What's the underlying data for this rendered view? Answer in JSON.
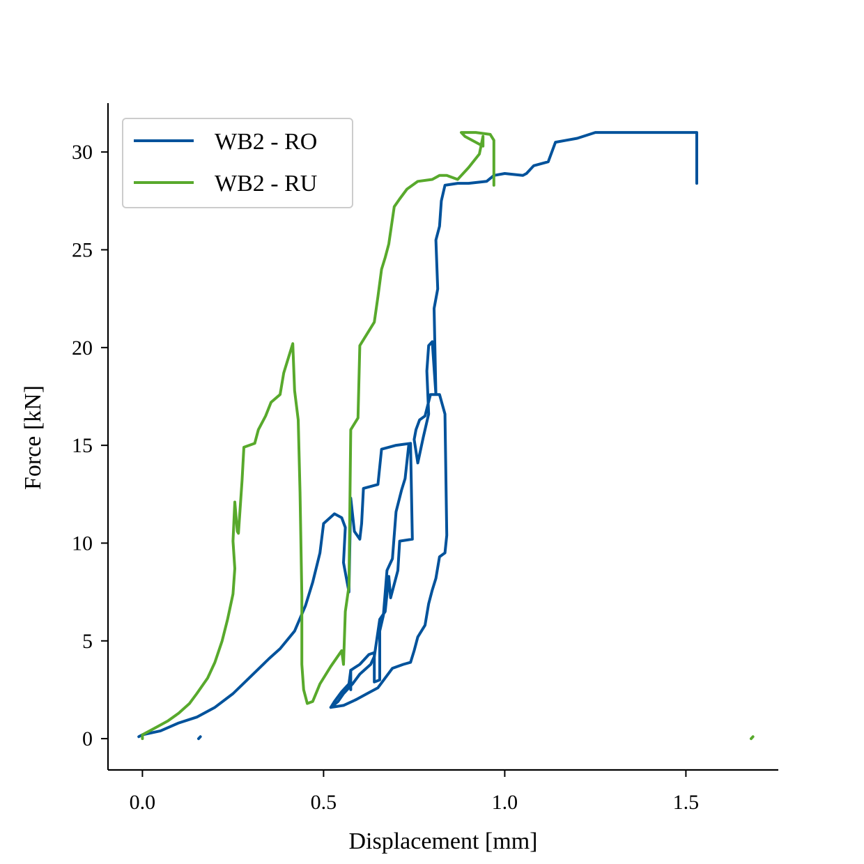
{
  "chart_data": {
    "type": "line",
    "title": "",
    "xlabel": "Displacement [mm]",
    "ylabel": "Force [kN]",
    "xlim": [
      -0.095,
      1.755
    ],
    "ylim": [
      -1.6,
      32.5
    ],
    "xticks": [
      0.0,
      0.5,
      1.0,
      1.5
    ],
    "xtick_labels": [
      "0.0",
      "0.5",
      "1.0",
      "1.5"
    ],
    "yticks": [
      0,
      5,
      10,
      15,
      20,
      25,
      30
    ],
    "ytick_labels": [
      "0",
      "5",
      "10",
      "15",
      "20",
      "25",
      "30"
    ],
    "grid": false,
    "legend_position": "top-left",
    "series": [
      {
        "name": "WB2 - RO",
        "color": "#00529b",
        "segments": [
          [
            [
              0.155,
              0.0
            ],
            [
              0.16,
              0.1
            ]
          ],
          [
            [
              -0.01,
              0.1
            ],
            [
              0.0,
              0.2
            ],
            [
              0.05,
              0.4
            ],
            [
              0.1,
              0.8
            ],
            [
              0.15,
              1.1
            ],
            [
              0.2,
              1.6
            ],
            [
              0.25,
              2.3
            ],
            [
              0.3,
              3.2
            ],
            [
              0.35,
              4.1
            ],
            [
              0.38,
              4.6
            ],
            [
              0.42,
              5.5
            ],
            [
              0.45,
              6.8
            ],
            [
              0.47,
              8.0
            ],
            [
              0.49,
              9.5
            ],
            [
              0.5,
              11.0
            ],
            [
              0.53,
              11.5
            ],
            [
              0.55,
              11.3
            ],
            [
              0.56,
              10.8
            ],
            [
              0.555,
              9.0
            ],
            [
              0.57,
              7.5
            ],
            [
              0.575,
              12.3
            ],
            [
              0.585,
              10.6
            ],
            [
              0.6,
              10.2
            ],
            [
              0.605,
              11.0
            ],
            [
              0.61,
              12.8
            ],
            [
              0.65,
              13.0
            ],
            [
              0.66,
              14.8
            ],
            [
              0.7,
              15.0
            ],
            [
              0.74,
              15.1
            ],
            [
              0.745,
              10.2
            ],
            [
              0.71,
              10.1
            ],
            [
              0.705,
              8.6
            ],
            [
              0.685,
              7.2
            ],
            [
              0.68,
              8.3
            ],
            [
              0.67,
              6.5
            ],
            [
              0.655,
              6.1
            ],
            [
              0.64,
              4.2
            ],
            [
              0.63,
              3.8
            ],
            [
              0.6,
              3.3
            ],
            [
              0.58,
              2.8
            ],
            [
              0.555,
              2.3
            ],
            [
              0.54,
              1.9
            ],
            [
              0.52,
              1.6
            ],
            [
              0.555,
              1.7
            ],
            [
              0.59,
              2.0
            ],
            [
              0.62,
              2.3
            ],
            [
              0.65,
              2.6
            ],
            [
              0.67,
              3.1
            ],
            [
              0.69,
              3.6
            ],
            [
              0.72,
              3.8
            ],
            [
              0.74,
              3.9
            ],
            [
              0.75,
              4.5
            ],
            [
              0.76,
              5.2
            ],
            [
              0.78,
              5.8
            ],
            [
              0.79,
              6.9
            ],
            [
              0.8,
              7.6
            ],
            [
              0.81,
              8.2
            ],
            [
              0.82,
              9.3
            ],
            [
              0.835,
              9.5
            ],
            [
              0.84,
              10.4
            ],
            [
              0.835,
              16.6
            ],
            [
              0.82,
              17.6
            ],
            [
              0.795,
              17.6
            ],
            [
              0.78,
              16.5
            ],
            [
              0.765,
              16.3
            ],
            [
              0.755,
              15.8
            ],
            [
              0.75,
              15.3
            ],
            [
              0.76,
              14.1
            ],
            [
              0.775,
              15.4
            ],
            [
              0.79,
              16.6
            ],
            [
              0.785,
              18.8
            ],
            [
              0.79,
              20.1
            ],
            [
              0.8,
              20.3
            ],
            [
              0.81,
              17.6
            ],
            [
              0.805,
              22.0
            ],
            [
              0.815,
              23.0
            ],
            [
              0.81,
              25.5
            ],
            [
              0.82,
              26.2
            ],
            [
              0.825,
              27.5
            ],
            [
              0.835,
              28.3
            ],
            [
              0.87,
              28.4
            ],
            [
              0.9,
              28.4
            ],
            [
              0.95,
              28.5
            ],
            [
              0.97,
              28.8
            ],
            [
              1.0,
              28.9
            ],
            [
              1.05,
              28.8
            ],
            [
              1.06,
              28.9
            ],
            [
              1.08,
              29.3
            ],
            [
              1.12,
              29.5
            ],
            [
              1.14,
              30.5
            ],
            [
              1.17,
              30.6
            ],
            [
              1.2,
              30.7
            ],
            [
              1.25,
              31.0
            ],
            [
              1.3,
              31.0
            ],
            [
              1.4,
              31.0
            ],
            [
              1.5,
              31.0
            ],
            [
              1.53,
              31.0
            ],
            [
              1.53,
              28.4
            ]
          ],
          [
            [
              0.52,
              1.6
            ],
            [
              0.53,
              1.9
            ],
            [
              0.55,
              2.4
            ],
            [
              0.57,
              2.8
            ],
            [
              0.575,
              3.5
            ],
            [
              0.6,
              3.8
            ],
            [
              0.625,
              4.3
            ],
            [
              0.64,
              4.4
            ],
            [
              0.64,
              2.9
            ],
            [
              0.655,
              3.0
            ],
            [
              0.655,
              5.5
            ],
            [
              0.665,
              6.3
            ],
            [
              0.675,
              8.6
            ],
            [
              0.69,
              9.2
            ],
            [
              0.7,
              11.6
            ],
            [
              0.715,
              12.7
            ],
            [
              0.725,
              13.3
            ],
            [
              0.735,
              15.0
            ]
          ],
          [
            [
              0.575,
              3.5
            ],
            [
              0.575,
              2.5
            ]
          ]
        ]
      },
      {
        "name": "WB2 - RU",
        "color": "#58a92c",
        "segments": [
          [
            [
              1.68,
              0.0
            ],
            [
              1.685,
              0.1
            ]
          ],
          [
            [
              0.0,
              0.0
            ],
            [
              0.0,
              0.2
            ],
            [
              0.03,
              0.5
            ],
            [
              0.07,
              0.9
            ],
            [
              0.1,
              1.3
            ],
            [
              0.13,
              1.8
            ],
            [
              0.15,
              2.3
            ],
            [
              0.18,
              3.1
            ],
            [
              0.2,
              3.9
            ],
            [
              0.22,
              5.0
            ],
            [
              0.235,
              6.1
            ],
            [
              0.25,
              7.4
            ],
            [
              0.255,
              8.7
            ],
            [
              0.25,
              10.1
            ],
            [
              0.255,
              12.1
            ],
            [
              0.262,
              10.6
            ],
            [
              0.265,
              10.5
            ],
            [
              0.275,
              13.2
            ],
            [
              0.28,
              14.9
            ],
            [
              0.31,
              15.1
            ],
            [
              0.32,
              15.8
            ],
            [
              0.34,
              16.5
            ],
            [
              0.355,
              17.2
            ],
            [
              0.38,
              17.6
            ],
            [
              0.39,
              18.7
            ],
            [
              0.405,
              19.6
            ],
            [
              0.415,
              20.2
            ],
            [
              0.42,
              17.8
            ],
            [
              0.43,
              16.3
            ],
            [
              0.435,
              12.6
            ],
            [
              0.44,
              7.3
            ],
            [
              0.44,
              3.8
            ],
            [
              0.445,
              2.5
            ],
            [
              0.455,
              1.8
            ],
            [
              0.47,
              1.9
            ],
            [
              0.49,
              2.8
            ],
            [
              0.52,
              3.7
            ],
            [
              0.55,
              4.5
            ],
            [
              0.555,
              3.8
            ],
            [
              0.56,
              6.5
            ],
            [
              0.57,
              7.8
            ],
            [
              0.575,
              15.8
            ],
            [
              0.595,
              16.4
            ],
            [
              0.6,
              20.1
            ],
            [
              0.62,
              20.7
            ],
            [
              0.64,
              21.3
            ],
            [
              0.65,
              22.6
            ],
            [
              0.66,
              24.0
            ],
            [
              0.67,
              24.6
            ],
            [
              0.68,
              25.3
            ],
            [
              0.695,
              27.2
            ],
            [
              0.71,
              27.6
            ],
            [
              0.73,
              28.1
            ],
            [
              0.76,
              28.5
            ],
            [
              0.8,
              28.6
            ],
            [
              0.82,
              28.8
            ],
            [
              0.84,
              28.8
            ],
            [
              0.87,
              28.6
            ],
            [
              0.9,
              29.2
            ],
            [
              0.93,
              29.9
            ],
            [
              0.94,
              30.8
            ],
            [
              0.94,
              30.3
            ],
            [
              0.89,
              30.8
            ],
            [
              0.88,
              31.0
            ],
            [
              0.92,
              31.0
            ],
            [
              0.96,
              30.9
            ],
            [
              0.97,
              30.6
            ],
            [
              0.97,
              28.3
            ]
          ]
        ]
      }
    ]
  }
}
